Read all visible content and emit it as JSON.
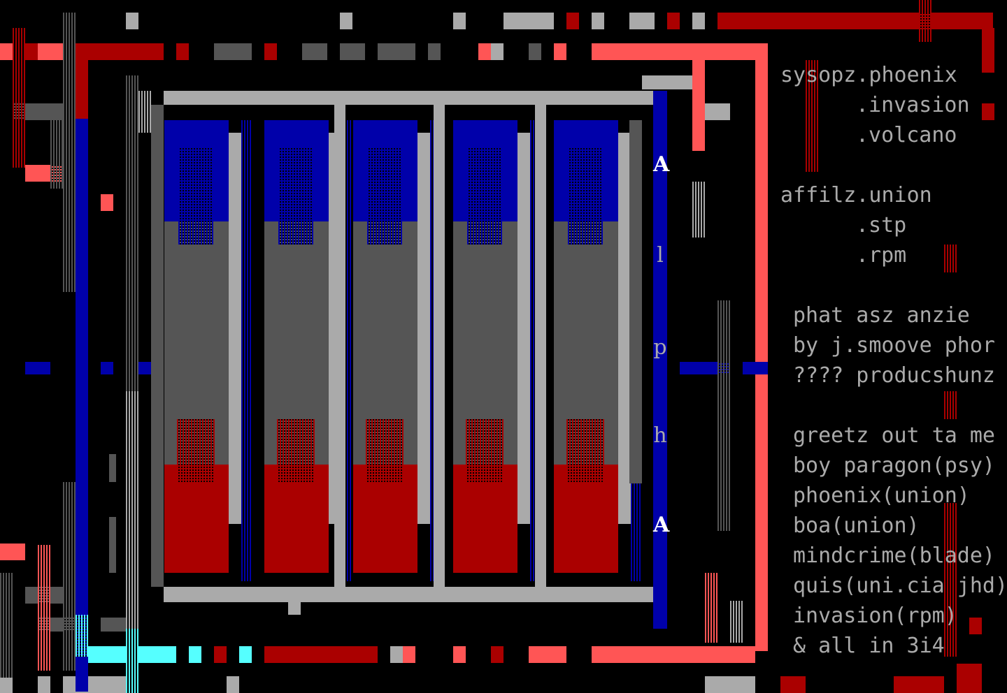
{
  "palette": {
    "background": "#000000",
    "gray": "#aaaaaa",
    "dark_gray": "#555555",
    "blue": "#0000aa",
    "red": "#aa0000",
    "salmon": "#ff5555",
    "cyan": "#55ffff",
    "text": "#aaaaaa"
  },
  "vertical_logo": [
    "A",
    "l",
    "p",
    "h",
    "A"
  ],
  "info": {
    "sysops": [
      "sysopz.phoenix",
      ".invasion",
      ".volcano"
    ],
    "affils": [
      "affilz.union",
      ".stp",
      ".rpm"
    ],
    "credit": [
      "phat asz anzie",
      "by j.smoove phor",
      "???? producshunz"
    ],
    "greets": [
      "greetz out ta me",
      "boy paragon(psy)",
      "phoenix(union)",
      "boa(union)",
      "mindcrime(blade)",
      "quis(uni.cia jhd)",
      "invasion(rpm)",
      "& all in 3i4"
    ]
  }
}
